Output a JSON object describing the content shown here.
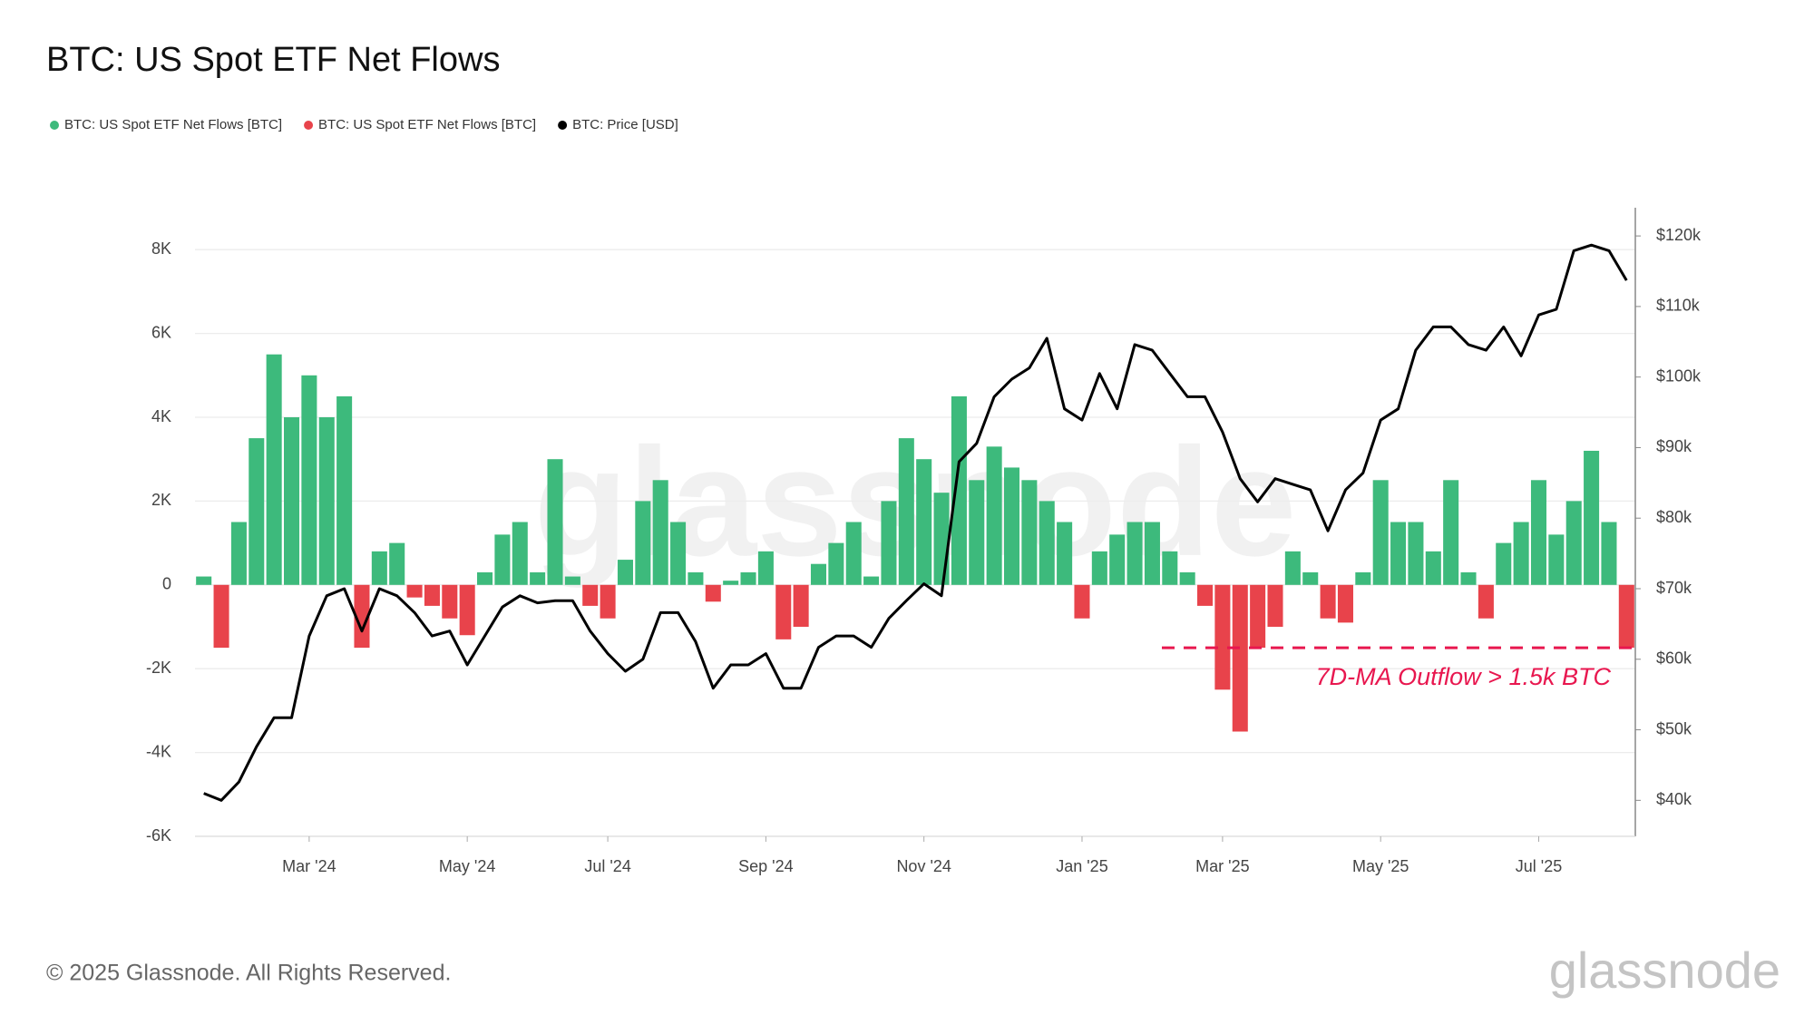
{
  "chart_data": {
    "type": "bar",
    "title": "BTC: US Spot ETF Net Flows",
    "watermark": "glassnode",
    "copyright": "© 2025 Glassnode. All Rights Reserved.",
    "logo": "glassnode",
    "categories": [
      null,
      null,
      null,
      null,
      null,
      null,
      "Mar '24",
      null,
      null,
      null,
      null,
      null,
      null,
      null,
      null,
      "May '24",
      null,
      null,
      null,
      null,
      null,
      null,
      null,
      "Jul '24",
      null,
      null,
      null,
      null,
      null,
      null,
      null,
      null,
      "Sep '24",
      null,
      null,
      null,
      null,
      null,
      null,
      null,
      null,
      "Nov '24",
      null,
      null,
      null,
      null,
      null,
      null,
      null,
      null,
      "Jan '25",
      null,
      null,
      null,
      null,
      null,
      null,
      null,
      "Mar '25",
      null,
      null,
      null,
      null,
      null,
      null,
      null,
      null,
      "May '25",
      null,
      null,
      null,
      null,
      null,
      null,
      null,
      null,
      "Jul '25",
      null,
      null,
      null,
      null,
      null
    ],
    "series": [
      {
        "name": "BTC: US Spot ETF Net Flows [BTC]",
        "color": "#3dba7c",
        "type": "bar",
        "values": [
          200,
          null,
          1500,
          3500,
          5500,
          4000,
          5000,
          4000,
          4500,
          null,
          800,
          1000,
          null,
          null,
          null,
          null,
          300,
          1200,
          1500,
          300,
          3000,
          200,
          null,
          null,
          600,
          2000,
          2500,
          1500,
          300,
          null,
          100,
          300,
          800,
          null,
          null,
          500,
          1000,
          1500,
          200,
          2000,
          3500,
          3000,
          2200,
          4500,
          2500,
          3300,
          2800,
          2500,
          2000,
          1500,
          null,
          800,
          1200,
          1500,
          1500,
          800,
          300,
          null,
          null,
          null,
          null,
          null,
          800,
          300,
          null,
          null,
          300,
          2500,
          1500,
          1500,
          800,
          2500,
          300,
          null,
          1000,
          1500,
          2500,
          1200,
          2000,
          3200,
          1500,
          null
        ]
      },
      {
        "name": "BTC: US Spot ETF Net Flows [BTC]",
        "color": "#e8434b",
        "type": "bar",
        "values": [
          null,
          -1500,
          null,
          null,
          null,
          null,
          null,
          null,
          null,
          -1500,
          null,
          null,
          -300,
          -500,
          -800,
          -1200,
          null,
          null,
          null,
          null,
          null,
          null,
          -500,
          -800,
          null,
          null,
          null,
          null,
          null,
          -400,
          null,
          null,
          null,
          -1300,
          -1000,
          null,
          null,
          null,
          null,
          null,
          null,
          null,
          null,
          null,
          null,
          null,
          null,
          null,
          null,
          null,
          -800,
          null,
          null,
          null,
          null,
          null,
          null,
          -500,
          -2500,
          -3500,
          -1500,
          -1000,
          null,
          null,
          -800,
          -900,
          null,
          null,
          null,
          null,
          null,
          null,
          null,
          -800,
          null,
          null,
          null,
          null,
          null,
          null,
          null,
          -1500
        ]
      },
      {
        "name": "BTC: Price [USD]",
        "color": "#000000",
        "type": "line",
        "axis": "y2",
        "values": [
          41000,
          40000,
          42600,
          47600,
          51700,
          51700,
          63300,
          69000,
          70000,
          64000,
          70000,
          69000,
          66600,
          63300,
          64000,
          59200,
          63300,
          67400,
          69000,
          68000,
          68300,
          68300,
          64000,
          60800,
          58300,
          60000,
          66600,
          66600,
          62500,
          55900,
          59200,
          59200,
          60800,
          55900,
          55900,
          61700,
          63300,
          63300,
          61700,
          65800,
          68300,
          70700,
          69000,
          88000,
          90600,
          97200,
          99700,
          101300,
          105500,
          95500,
          93900,
          100500,
          95500,
          104600,
          103800,
          100500,
          97200,
          97200,
          92200,
          85600,
          82300,
          85600,
          84800,
          84000,
          78200,
          84000,
          86400,
          93900,
          95500,
          103800,
          107100,
          107100,
          104600,
          103800,
          107100,
          103000,
          108800,
          109600,
          117900,
          118700,
          117900,
          113700
        ]
      }
    ],
    "ylim": [
      -6000,
      9000
    ],
    "yticks": [
      {
        "value": -6000,
        "label": "-6K"
      },
      {
        "value": -4000,
        "label": "-4K"
      },
      {
        "value": -2000,
        "label": "-2K"
      },
      0,
      {
        "value": 2000,
        "label": "2K"
      },
      {
        "value": 4000,
        "label": "4K"
      },
      {
        "value": 6000,
        "label": "6K"
      },
      {
        "value": 8000,
        "label": "8K"
      }
    ],
    "y2lim": [
      34900,
      124000
    ],
    "y2ticks": [
      {
        "value": 40000,
        "label": "$40k"
      },
      {
        "value": 50000,
        "label": "$50k"
      },
      {
        "value": 60000,
        "label": "$60k"
      },
      {
        "value": 70000,
        "label": "$70k"
      },
      {
        "value": 80000,
        "label": "$80k"
      },
      {
        "value": 90000,
        "label": "$90k"
      },
      {
        "value": 100000,
        "label": "$100k"
      },
      {
        "value": 110000,
        "label": "$110k"
      },
      {
        "value": 120000,
        "label": "$120k"
      }
    ],
    "grid": true,
    "annotation": {
      "text": "7D-MA Outflow > 1.5k BTC",
      "value": -1500,
      "color": "#e8174f"
    }
  }
}
